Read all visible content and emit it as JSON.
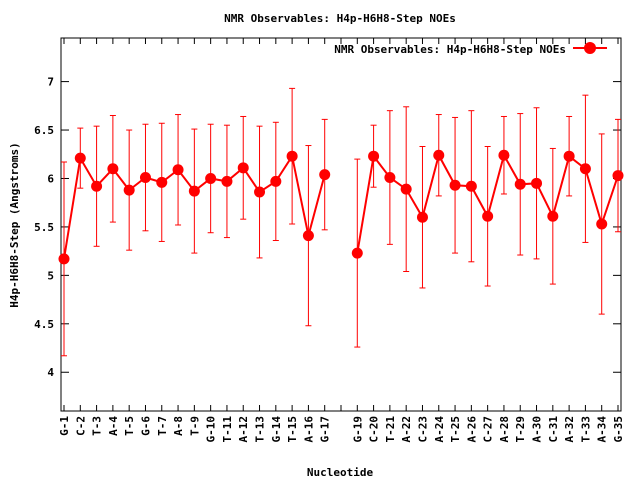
{
  "chart_data": {
    "type": "line",
    "title": "NMR Observables: H4p-H6H8-Step NOEs",
    "xlabel": "Nucleotide",
    "ylabel": "H4p-H6H8-Step (Angstroms)",
    "ylim": [
      3.6,
      7.45
    ],
    "yticks": [
      4,
      4.5,
      5,
      5.5,
      6,
      6.5,
      7
    ],
    "grid": false,
    "legend_position": "top-right",
    "categories": [
      "G-1",
      "C-2",
      "T-3",
      "A-4",
      "T-5",
      "G-6",
      "T-7",
      "A-8",
      "T-9",
      "G-10",
      "T-11",
      "A-12",
      "T-13",
      "G-14",
      "T-15",
      "A-16",
      "G-17",
      "",
      "G-19",
      "C-20",
      "T-21",
      "A-22",
      "C-23",
      "A-24",
      "T-25",
      "A-26",
      "C-27",
      "A-28",
      "T-29",
      "A-30",
      "C-31",
      "A-32",
      "T-33",
      "A-34",
      "G-35"
    ],
    "series": [
      {
        "name": "NMR Observables: H4p-H6H8-Step NOEs",
        "color": "#ff0000",
        "values": [
          5.17,
          6.21,
          5.92,
          6.1,
          5.88,
          6.01,
          5.96,
          6.09,
          5.87,
          6.0,
          5.97,
          6.11,
          5.86,
          5.97,
          6.23,
          5.41,
          6.04,
          null,
          5.23,
          6.23,
          6.01,
          5.89,
          5.6,
          6.24,
          5.93,
          5.92,
          5.61,
          6.24,
          5.94,
          5.95,
          5.61,
          6.23,
          6.1,
          5.53,
          6.03
        ],
        "errors": [
          1.0,
          0.31,
          0.62,
          0.55,
          0.62,
          0.55,
          0.61,
          0.57,
          0.64,
          0.56,
          0.58,
          0.53,
          0.68,
          0.61,
          0.7,
          0.93,
          0.57,
          null,
          0.97,
          0.32,
          0.69,
          0.85,
          0.73,
          0.42,
          0.7,
          0.78,
          0.72,
          0.4,
          0.73,
          0.78,
          0.7,
          0.41,
          0.76,
          0.93,
          0.58
        ]
      }
    ]
  }
}
